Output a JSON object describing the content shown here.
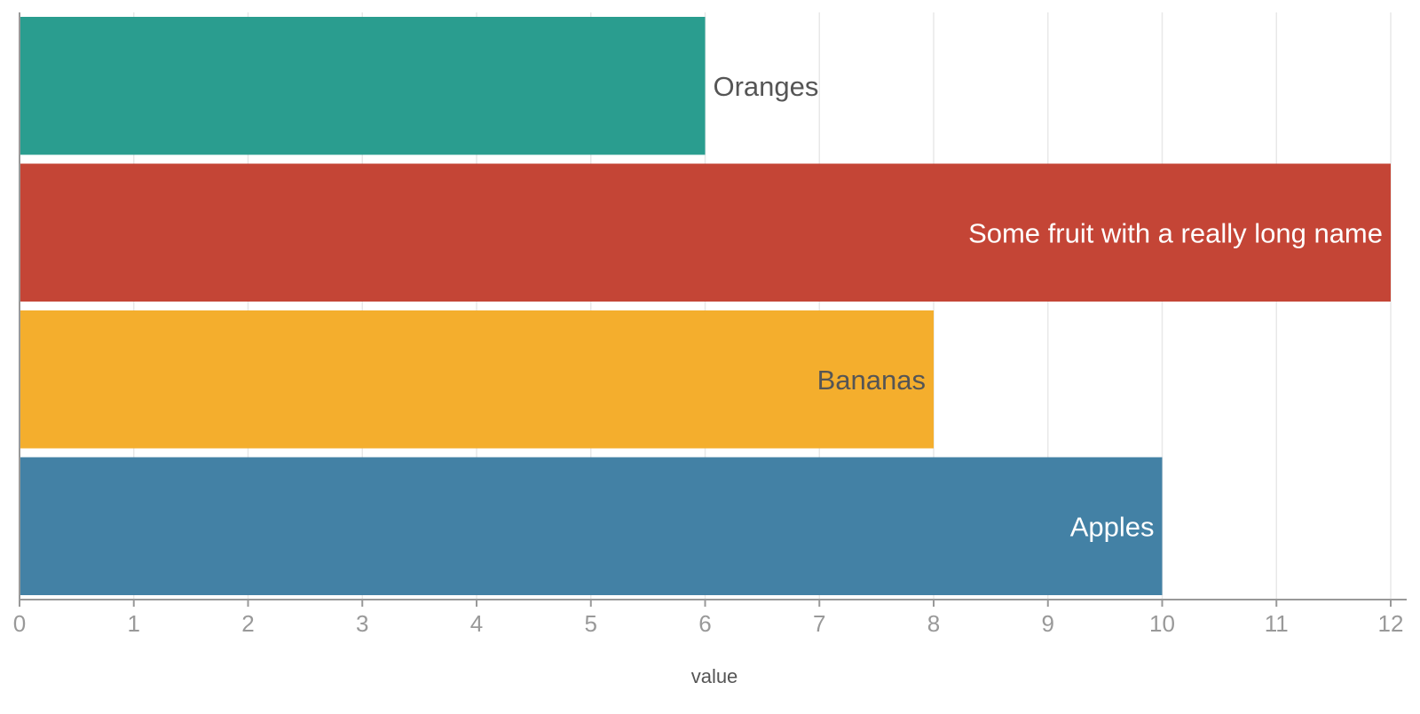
{
  "chart_data": {
    "type": "bar",
    "orientation": "horizontal",
    "categories": [
      "Oranges",
      "Some fruit with a really long name",
      "Bananas",
      "Apples"
    ],
    "values": [
      6,
      12,
      8,
      10
    ],
    "colors": [
      "#2a9d8f",
      "#c44536",
      "#f4ae2d",
      "#4381a5"
    ],
    "label_colors": [
      "#555555",
      "#ffffff",
      "#555555",
      "#ffffff"
    ],
    "label_positions": [
      "outside",
      "inside",
      "inside",
      "inside"
    ],
    "title": "",
    "xlabel": "value",
    "ylabel": "",
    "xlim": [
      0,
      12
    ],
    "xticks": [
      "0",
      "1",
      "2",
      "3",
      "4",
      "5",
      "6",
      "7",
      "8",
      "9",
      "10",
      "11",
      "12"
    ],
    "grid": true,
    "legend": "none"
  }
}
